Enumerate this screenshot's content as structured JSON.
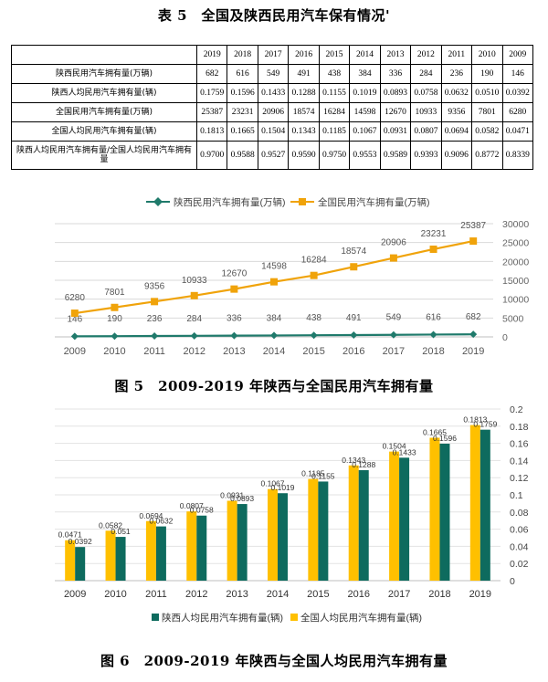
{
  "table5": {
    "caption": "表 5　全国及陕西民用汽车保有情况'",
    "years": [
      "2019",
      "2018",
      "2017",
      "2016",
      "2015",
      "2014",
      "2013",
      "2012",
      "2011",
      "2010",
      "2009"
    ],
    "rows": [
      {
        "label": "陕西民用汽车拥有量(万辆)",
        "values": [
          "682",
          "616",
          "549",
          "491",
          "438",
          "384",
          "336",
          "284",
          "236",
          "190",
          "146"
        ]
      },
      {
        "label": "陕西人均民用汽车拥有量(辆)",
        "values": [
          "0.1759",
          "0.1596",
          "0.1433",
          "0.1288",
          "0.1155",
          "0.1019",
          "0.0893",
          "0.0758",
          "0.0632",
          "0.0510",
          "0.0392"
        ]
      },
      {
        "label": "全国民用汽车拥有量(万辆)",
        "values": [
          "25387",
          "23231",
          "20906",
          "18574",
          "16284",
          "14598",
          "12670",
          "10933",
          "9356",
          "7801",
          "6280"
        ]
      },
      {
        "label": "全国人均民用汽车拥有量(辆)",
        "values": [
          "0.1813",
          "0.1665",
          "0.1504",
          "0.1343",
          "0.1185",
          "0.1067",
          "0.0931",
          "0.0807",
          "0.0694",
          "0.0582",
          "0.0471"
        ]
      },
      {
        "label": "陕西人均民用汽车拥有量/全国人均民用汽车拥有量",
        "values": [
          "0.9700",
          "0.9588",
          "0.9527",
          "0.9590",
          "0.9750",
          "0.9553",
          "0.9589",
          "0.9393",
          "0.9096",
          "0.8772",
          "0.8339"
        ]
      }
    ]
  },
  "figure5": {
    "caption": "图 5　2009-2019 年陕西与全国民用汽车拥有量"
  },
  "figure6": {
    "caption": "图 6　2009-2019 年陕西与全国人均民用汽车拥有量"
  },
  "chart_data": [
    {
      "type": "line",
      "x": [
        "2009",
        "2010",
        "2011",
        "2012",
        "2013",
        "2014",
        "2015",
        "2016",
        "2017",
        "2018",
        "2019"
      ],
      "series": [
        {
          "name": "陕西民用汽车拥有量(万辆)",
          "color": "#1f7a6b",
          "values": [
            146,
            190,
            236,
            284,
            336,
            384,
            438,
            491,
            549,
            616,
            682
          ]
        },
        {
          "name": "全国民用汽车拥有量(万辆)",
          "color": "#f0a30a",
          "values": [
            6280,
            7801,
            9356,
            10933,
            12670,
            14598,
            16284,
            18574,
            20906,
            23231,
            25387
          ]
        }
      ],
      "ylim": [
        0,
        30000
      ],
      "yticks": [
        "0",
        "5000",
        "10000",
        "15000",
        "20000",
        "25000",
        "30000"
      ],
      "legend": "top",
      "grid": "horizontal"
    },
    {
      "type": "bar",
      "categories": [
        "2009",
        "2010",
        "2011",
        "2012",
        "2013",
        "2014",
        "2015",
        "2016",
        "2017",
        "2018",
        "2019"
      ],
      "series": [
        {
          "name": "陕西人均民用汽车拥有量(辆)",
          "color": "#0e6b5e",
          "values": [
            0.0392,
            0.051,
            0.0632,
            0.0758,
            0.0893,
            0.1019,
            0.1155,
            0.1288,
            0.1433,
            0.1596,
            0.1759
          ],
          "labels": [
            "0.0392",
            "0.051",
            "0.0632",
            "0.0758",
            "0.0893",
            "0.1019",
            "0.1155",
            "0.1288",
            "0.1433",
            "0.1596",
            "0.1759"
          ]
        },
        {
          "name": "全国人均民用汽车拥有量(辆)",
          "color": "#ffc000",
          "values": [
            0.0471,
            0.0582,
            0.0694,
            0.0807,
            0.0931,
            0.1067,
            0.1185,
            0.1343,
            0.1504,
            0.1665,
            0.1813
          ],
          "labels": [
            "0.0471",
            "0.0582",
            "0.0694",
            "0.0807",
            "0.0931",
            "0.1067",
            "0.1185",
            "0.1343",
            "0.1504",
            "0.1665",
            "0.1813"
          ]
        }
      ],
      "ylim": [
        0,
        0.2
      ],
      "yticks": [
        "0",
        "0.02",
        "0.04",
        "0.06",
        "0.08",
        "0.1",
        "0.12",
        "0.14",
        "0.16",
        "0.18",
        "0.2"
      ],
      "legend": "bottom",
      "grid": "horizontal"
    }
  ]
}
